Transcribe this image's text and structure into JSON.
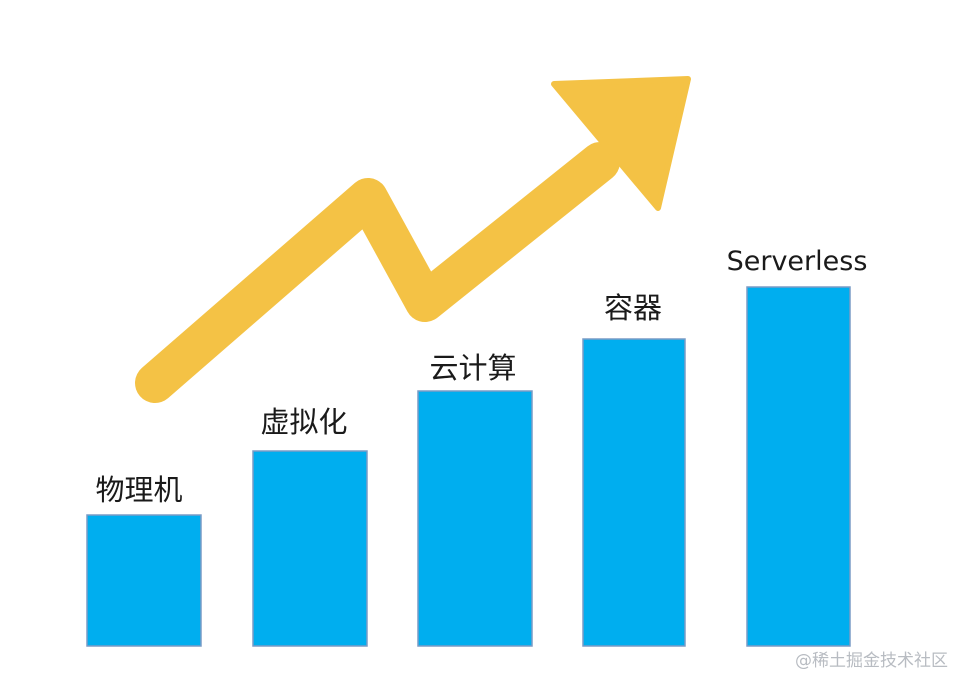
{
  "diagram": {
    "stages": [
      {
        "label": "物理机",
        "level": 1
      },
      {
        "label": "虚拟化",
        "level": 2
      },
      {
        "label": "云计算",
        "level": 3
      },
      {
        "label": "容器",
        "level": 4
      },
      {
        "label": "Serverless",
        "level": 5
      }
    ],
    "colors": {
      "bar": "#00aeef",
      "arrow": "#f4c245"
    },
    "watermark": "@稀土掘金技术社区"
  }
}
